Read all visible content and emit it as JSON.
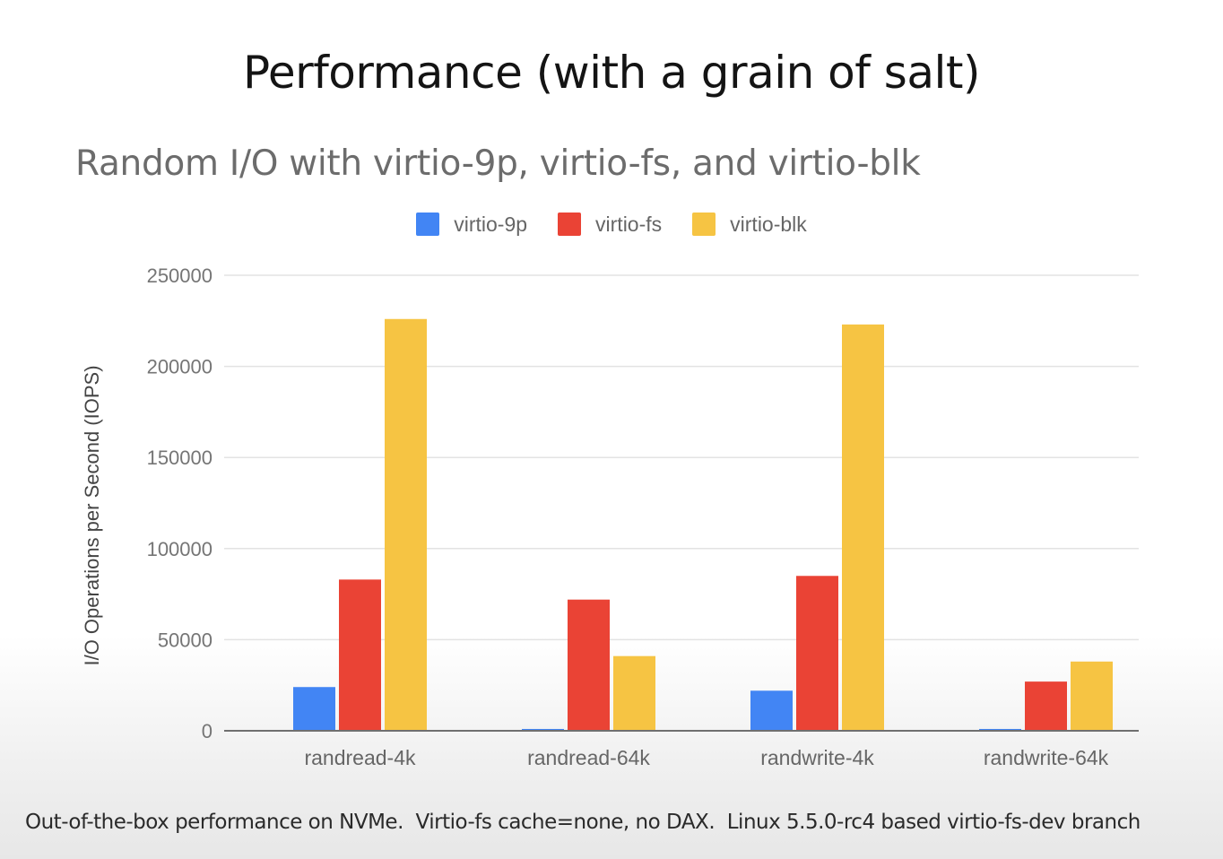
{
  "slide": {
    "title": "Performance (with a grain of salt)",
    "footnote": "Out-of-the-box performance on NVMe.  Virtio-fs cache=none, no DAX.  Linux 5.5.0-rc4 based virtio-fs-dev branch"
  },
  "chart_data": {
    "type": "bar",
    "title": "Random I/O with virtio-9p, virtio-fs, and virtio-blk",
    "xlabel": "",
    "ylabel": "I/O Operations per Second (IOPS)",
    "categories": [
      "randread-4k",
      "randread-64k",
      "randwrite-4k",
      "randwrite-64k"
    ],
    "series": [
      {
        "name": "virtio-9p",
        "color": "#4285f4",
        "values": [
          24000,
          1000,
          22000,
          1000
        ]
      },
      {
        "name": "virtio-fs",
        "color": "#ea4335",
        "values": [
          83000,
          72000,
          85000,
          27000
        ]
      },
      {
        "name": "virtio-blk",
        "color": "#f6c443",
        "values": [
          226000,
          41000,
          223000,
          38000
        ]
      }
    ],
    "ylim": [
      0,
      250000
    ],
    "yticks": [
      0,
      50000,
      100000,
      150000,
      200000,
      250000
    ],
    "grid": true,
    "legend_position": "top-center"
  }
}
